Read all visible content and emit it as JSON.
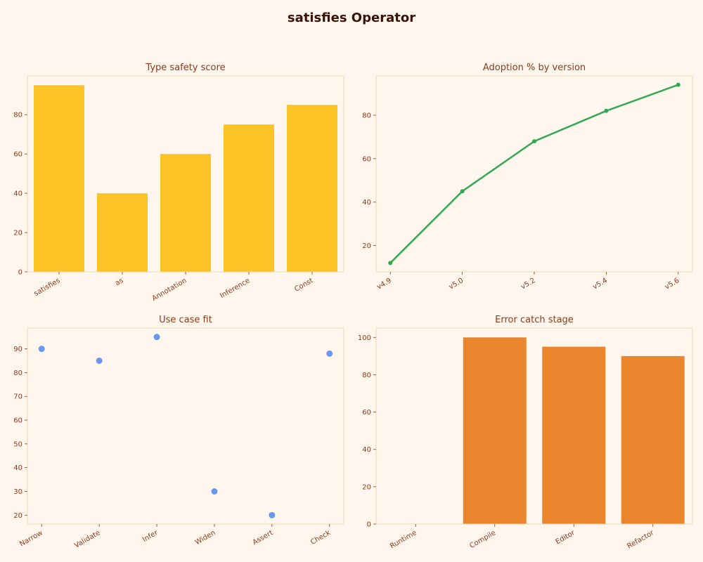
{
  "figure": {
    "title": "satisfies Operator"
  },
  "chart_data": [
    {
      "type": "bar",
      "title": "Type safety score",
      "categories": [
        "satisfies",
        "as",
        "Annotation",
        "Inference",
        "Const"
      ],
      "values": [
        95,
        40,
        60,
        75,
        85
      ],
      "ylim": [
        0,
        99.75
      ],
      "yticks": [
        0,
        20,
        40,
        60,
        80
      ],
      "color": "#fcc326",
      "grid": false
    },
    {
      "type": "line",
      "title": "Adoption % by version",
      "categories": [
        "v4.9",
        "v5.0",
        "v5.2",
        "v5.4",
        "v5.6"
      ],
      "values": [
        12,
        45,
        68,
        82,
        94
      ],
      "ylim": [
        7.9,
        98.1
      ],
      "yticks": [
        20,
        40,
        60,
        80
      ],
      "color": "#34a853",
      "grid": false
    },
    {
      "type": "scatter",
      "title": "Use case fit",
      "categories": [
        "Narrow",
        "Validate",
        "Infer",
        "Widen",
        "Assert",
        "Check"
      ],
      "values": [
        90,
        85,
        95,
        30,
        20,
        88
      ],
      "ylim": [
        16.25,
        98.75
      ],
      "yticks": [
        20,
        30,
        40,
        50,
        60,
        70,
        80,
        90
      ],
      "color": "#5b8def",
      "grid": false
    },
    {
      "type": "bar",
      "title": "Error catch stage",
      "categories": [
        "Runtime",
        "Compile",
        "Editor",
        "Refactor"
      ],
      "values": [
        0,
        100,
        95,
        90
      ],
      "ylim": [
        0,
        105
      ],
      "yticks": [
        0,
        20,
        40,
        60,
        80,
        100
      ],
      "color": "#ea862d",
      "grid": false
    }
  ]
}
